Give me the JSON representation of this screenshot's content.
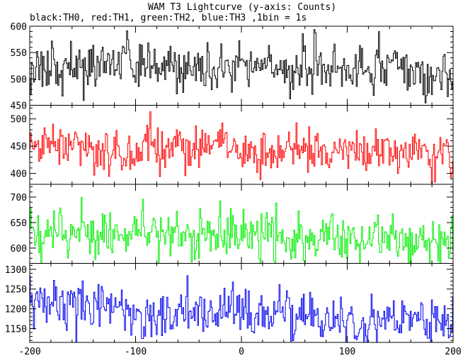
{
  "chart_data": {
    "type": "line",
    "title": "WAM T3 Lightcurve (y-axis: Counts)",
    "subtitle": "black:TH0, red:TH1, green:TH2, blue:TH3 ,1bin = 1s",
    "xlabel": "",
    "ylabel": "",
    "x_range": [
      -200,
      200
    ],
    "x_ticks": [
      -200,
      -100,
      0,
      100,
      200
    ],
    "x_tick_labels": [
      "-200",
      "-100",
      "0",
      "100",
      "200"
    ],
    "x_step": 1,
    "grid": false,
    "legend": "none",
    "panels": [
      {
        "series": "TH0",
        "color": "#000000",
        "ylim": [
          450,
          600
        ],
        "y_ticks": [
          450,
          500,
          550,
          600
        ],
        "y_tick_labels": [
          "450",
          "500",
          "550",
          "600"
        ],
        "mean": 523,
        "noise": 22,
        "trend": -0.02,
        "seed": 11
      },
      {
        "series": "TH1",
        "color": "#ff0000",
        "ylim": [
          380,
          525
        ],
        "y_ticks": [
          400,
          450,
          500
        ],
        "y_tick_labels": [
          "400",
          "450",
          "500"
        ],
        "mean": 447,
        "noise": 20,
        "trend": -0.035,
        "seed": 23
      },
      {
        "series": "TH2",
        "color": "#00ee00",
        "ylim": [
          570,
          725
        ],
        "y_ticks": [
          600,
          650,
          700
        ],
        "y_tick_labels": [
          "600",
          "650",
          "700"
        ],
        "mean": 638,
        "noise": 23,
        "trend": -0.06,
        "seed": 37
      },
      {
        "series": "TH3",
        "color": "#0000ee",
        "ylim": [
          1115,
          1315
        ],
        "y_ticks": [
          1150,
          1200,
          1250,
          1300
        ],
        "y_tick_labels": [
          "1150",
          "1200",
          "1250",
          "1300"
        ],
        "mean": 1210,
        "noise": 30,
        "trend": -0.13,
        "seed": 53
      }
    ]
  }
}
